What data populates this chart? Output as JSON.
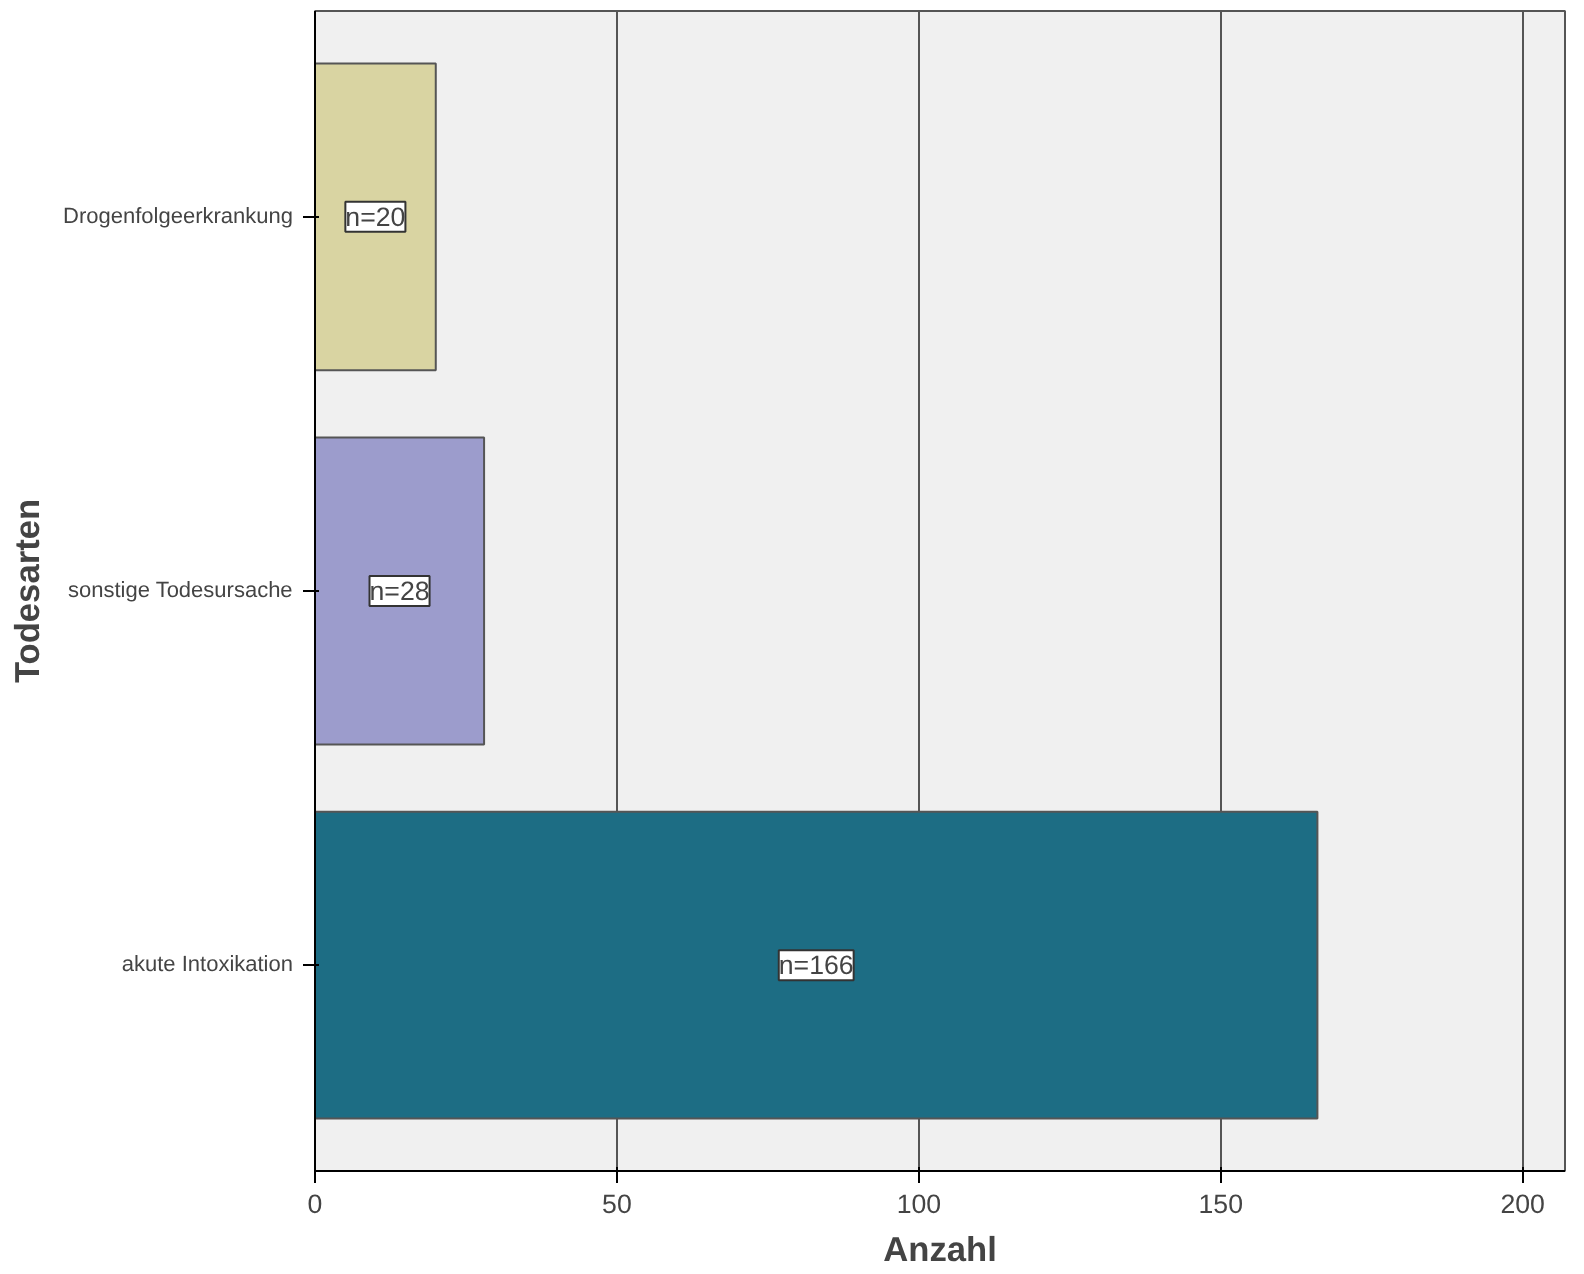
{
  "chart_data": {
    "type": "bar",
    "orientation": "horizontal",
    "xlabel": "Anzahl",
    "ylabel": "Todesarten",
    "categories": [
      "Drogenfolgeerkrankung",
      "sonstige Todesursache",
      "akute Intoxikation"
    ],
    "values": [
      20,
      28,
      166
    ],
    "colors": [
      "#d9d4a2",
      "#9c9ccc",
      "#1d6d84"
    ],
    "value_labels": [
      "n=20",
      "n=28",
      "n=166"
    ],
    "xlim": [
      0,
      207
    ],
    "xticks": [
      0,
      50,
      100,
      150,
      200
    ],
    "grid": "x"
  }
}
